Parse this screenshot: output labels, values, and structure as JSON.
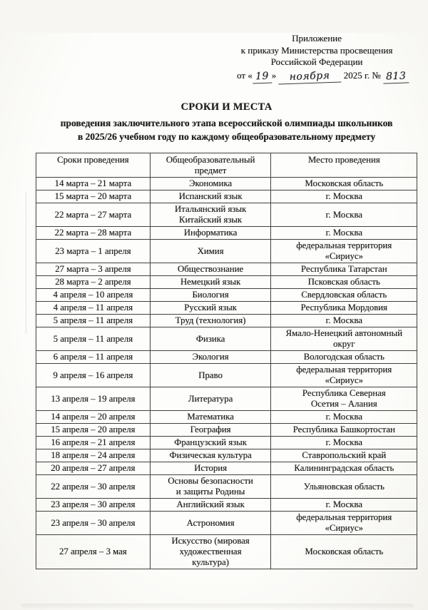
{
  "document": {
    "header": {
      "line1": "Приложение",
      "line2": "к приказу Министерства просвещения",
      "line3": "Российской Федерации",
      "date_prefix": "от «",
      "day": "19",
      "quote_close": "»",
      "month": "ноября",
      "year_suffix": "2025 г. №",
      "number": "813"
    },
    "title": {
      "line1": "СРОКИ И МЕСТА",
      "line2": "проведения заключительного этапа всероссийской олимпиады школьников",
      "line3": "в 2025/26 учебном году по каждому общеобразовательному предмету"
    },
    "table": {
      "headers": [
        "Сроки проведения",
        "Общеобразовательный\nпредмет",
        "Место проведения"
      ],
      "rows": [
        [
          "14 марта – 21 марта",
          "Экономика",
          "Московская область"
        ],
        [
          "15 марта – 20 марта",
          "Испанский язык",
          "г. Москва"
        ],
        [
          "22 марта – 27 марта",
          "Итальянский язык\nКитайский язык",
          "г. Москва"
        ],
        [
          "22 марта – 28 марта",
          "Информатика",
          "г. Москва"
        ],
        [
          "23 марта – 1 апреля",
          "Химия",
          "федеральная территория\n«Сириус»"
        ],
        [
          "27 марта – 3 апреля",
          "Обществознание",
          "Республика Татарстан"
        ],
        [
          "28 марта – 2 апреля",
          "Немецкий язык",
          "Псковская область"
        ],
        [
          "4 апреля – 10 апреля",
          "Биология",
          "Свердловская область"
        ],
        [
          "4 апреля – 11 апреля",
          "Русский язык",
          "Республика Мордовия"
        ],
        [
          "5 апреля – 11 апреля",
          "Труд (технология)",
          "г. Москва"
        ],
        [
          "5 апреля – 11 апреля",
          "Физика",
          "Ямало-Ненецкий автономный\nокруг"
        ],
        [
          "6 апреля – 11 апреля",
          "Экология",
          "Вологодская область"
        ],
        [
          "9 апреля – 16 апреля",
          "Право",
          "федеральная территория\n«Сириус»"
        ],
        [
          "13 апреля – 19 апреля",
          "Литература",
          "Республика Северная\nОсетия – Алания"
        ],
        [
          "14 апреля – 20 апреля",
          "Математика",
          "г. Москва"
        ],
        [
          "15 апреля – 20 апреля",
          "География",
          "Республика Башкортостан"
        ],
        [
          "16 апреля – 21 апреля",
          "Французский язык",
          "г. Москва"
        ],
        [
          "18 апреля – 24 апреля",
          "Физическая культура",
          "Ставропольский край"
        ],
        [
          "20 апреля – 27 апреля",
          "История",
          "Калининградская область"
        ],
        [
          "22 апреля – 30 апреля",
          "Основы безопасности\nи защиты Родины",
          "Ульяновская область"
        ],
        [
          "23 апреля – 30 апреля",
          "Английский язык",
          "г. Москва"
        ],
        [
          "23 апреля – 30 апреля",
          "Астрономия",
          "федеральная территория\n«Сириус»"
        ],
        [
          "27 апреля – 3 мая",
          "Искусство (мировая\nхудожественная\nкультура)",
          "Московская область"
        ]
      ]
    }
  }
}
